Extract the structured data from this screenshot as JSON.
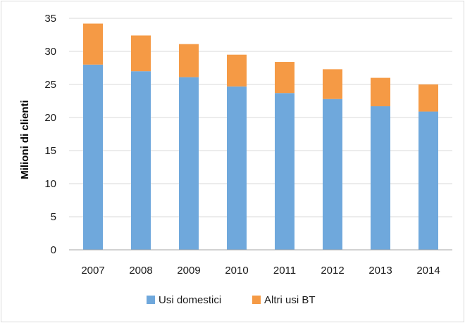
{
  "chart_data": {
    "type": "bar",
    "stacked": true,
    "title": "",
    "xlabel": "",
    "ylabel": "Milioni di clienti",
    "ylim": [
      0,
      35
    ],
    "yticks": [
      0,
      5,
      10,
      15,
      20,
      25,
      30,
      35
    ],
    "grid": true,
    "legend_position": "bottom",
    "categories": [
      "2007",
      "2008",
      "2009",
      "2010",
      "2011",
      "2012",
      "2013",
      "2014"
    ],
    "series": [
      {
        "name": "Usi domestici",
        "color": "#6fa8dc",
        "values": [
          28.0,
          27.0,
          26.1,
          24.7,
          23.7,
          22.8,
          21.7,
          20.9
        ]
      },
      {
        "name": "Altri usi BT",
        "color": "#f59a45",
        "values": [
          6.2,
          5.4,
          5.0,
          4.8,
          4.7,
          4.5,
          4.3,
          4.1
        ]
      }
    ]
  }
}
